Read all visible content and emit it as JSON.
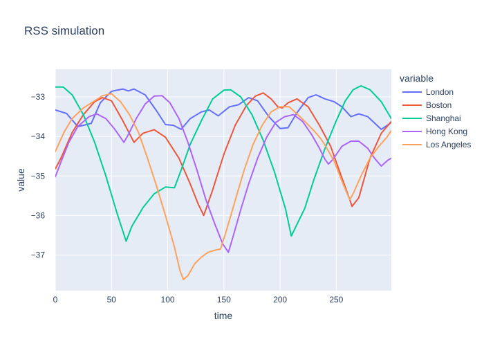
{
  "chart_data": {
    "type": "line",
    "title": "RSS simulation",
    "xlabel": "time",
    "ylabel": "value",
    "legend_title": "variable",
    "legend_position": "right",
    "grid": true,
    "xlim": [
      0,
      299
    ],
    "ylim": [
      -37.9,
      -32.3
    ],
    "x_ticks": [
      0,
      50,
      100,
      150,
      200,
      250
    ],
    "y_ticks": [
      -37,
      -36,
      -35,
      -34,
      -33
    ],
    "x_tick_labels": [
      "0",
      "50",
      "100",
      "150",
      "200",
      "250"
    ],
    "y_tick_labels": [
      "−37",
      "−36",
      "−35",
      "−34",
      "−33"
    ],
    "series": [
      {
        "name": "London",
        "color": "#636efa",
        "points": [
          [
            0,
            -33.33
          ],
          [
            10,
            -33.42
          ],
          [
            20,
            -33.75
          ],
          [
            25,
            -33.72
          ],
          [
            32,
            -33.67
          ],
          [
            40,
            -33.15
          ],
          [
            50,
            -32.86
          ],
          [
            60,
            -32.8
          ],
          [
            65,
            -32.85
          ],
          [
            70,
            -32.8
          ],
          [
            80,
            -32.95
          ],
          [
            90,
            -33.35
          ],
          [
            98,
            -33.7
          ],
          [
            105,
            -33.72
          ],
          [
            112,
            -33.82
          ],
          [
            120,
            -33.55
          ],
          [
            130,
            -33.38
          ],
          [
            137,
            -33.33
          ],
          [
            145,
            -33.48
          ],
          [
            155,
            -33.25
          ],
          [
            163,
            -33.2
          ],
          [
            172,
            -33.02
          ],
          [
            180,
            -33.1
          ],
          [
            190,
            -33.5
          ],
          [
            200,
            -33.8
          ],
          [
            207,
            -33.78
          ],
          [
            215,
            -33.4
          ],
          [
            225,
            -33.02
          ],
          [
            232,
            -32.95
          ],
          [
            240,
            -33.05
          ],
          [
            248,
            -33.12
          ],
          [
            255,
            -33.25
          ],
          [
            263,
            -33.5
          ],
          [
            270,
            -33.43
          ],
          [
            278,
            -33.5
          ],
          [
            290,
            -33.82
          ],
          [
            299,
            -33.65
          ]
        ]
      },
      {
        "name": "Boston",
        "color": "#ef553b",
        "points": [
          [
            0,
            -34.82
          ],
          [
            5,
            -34.55
          ],
          [
            15,
            -33.9
          ],
          [
            25,
            -33.45
          ],
          [
            35,
            -33.12
          ],
          [
            42,
            -33.02
          ],
          [
            50,
            -33.1
          ],
          [
            60,
            -33.6
          ],
          [
            70,
            -34.15
          ],
          [
            78,
            -33.92
          ],
          [
            88,
            -33.83
          ],
          [
            98,
            -34.02
          ],
          [
            110,
            -34.55
          ],
          [
            120,
            -35.2
          ],
          [
            127,
            -35.7
          ],
          [
            132,
            -36.0
          ],
          [
            140,
            -35.35
          ],
          [
            150,
            -34.45
          ],
          [
            160,
            -33.72
          ],
          [
            170,
            -33.22
          ],
          [
            178,
            -32.98
          ],
          [
            185,
            -32.9
          ],
          [
            192,
            -33.05
          ],
          [
            198,
            -33.25
          ],
          [
            202,
            -33.28
          ],
          [
            207,
            -33.15
          ],
          [
            215,
            -33.05
          ],
          [
            225,
            -33.25
          ],
          [
            235,
            -33.72
          ],
          [
            245,
            -34.25
          ],
          [
            255,
            -35.05
          ],
          [
            262,
            -35.6
          ],
          [
            264,
            -35.77
          ],
          [
            270,
            -35.55
          ],
          [
            280,
            -34.55
          ],
          [
            290,
            -33.92
          ],
          [
            299,
            -33.62
          ]
        ]
      },
      {
        "name": "Shanghai",
        "color": "#00cc96",
        "points": [
          [
            0,
            -32.75
          ],
          [
            7,
            -32.75
          ],
          [
            15,
            -32.95
          ],
          [
            25,
            -33.45
          ],
          [
            35,
            -34.15
          ],
          [
            45,
            -35.0
          ],
          [
            55,
            -35.95
          ],
          [
            63,
            -36.65
          ],
          [
            68,
            -36.28
          ],
          [
            78,
            -35.8
          ],
          [
            88,
            -35.45
          ],
          [
            98,
            -35.28
          ],
          [
            106,
            -35.3
          ],
          [
            112,
            -34.85
          ],
          [
            120,
            -34.2
          ],
          [
            130,
            -33.6
          ],
          [
            140,
            -33.05
          ],
          [
            150,
            -32.83
          ],
          [
            156,
            -32.82
          ],
          [
            165,
            -33.0
          ],
          [
            175,
            -33.45
          ],
          [
            185,
            -34.1
          ],
          [
            195,
            -34.9
          ],
          [
            205,
            -35.85
          ],
          [
            210,
            -36.52
          ],
          [
            218,
            -36.05
          ],
          [
            222,
            -35.82
          ],
          [
            230,
            -35.1
          ],
          [
            240,
            -34.3
          ],
          [
            250,
            -33.6
          ],
          [
            258,
            -33.1
          ],
          [
            265,
            -32.82
          ],
          [
            272,
            -32.72
          ],
          [
            280,
            -32.82
          ],
          [
            290,
            -33.12
          ],
          [
            299,
            -33.55
          ]
        ]
      },
      {
        "name": "Hong Kong",
        "color": "#ab63fa",
        "points": [
          [
            0,
            -35.02
          ],
          [
            5,
            -34.65
          ],
          [
            12,
            -34.15
          ],
          [
            20,
            -33.75
          ],
          [
            30,
            -33.5
          ],
          [
            37,
            -33.43
          ],
          [
            45,
            -33.55
          ],
          [
            53,
            -33.82
          ],
          [
            61,
            -34.15
          ],
          [
            65,
            -33.95
          ],
          [
            72,
            -33.55
          ],
          [
            80,
            -33.18
          ],
          [
            88,
            -32.98
          ],
          [
            95,
            -32.97
          ],
          [
            102,
            -33.15
          ],
          [
            110,
            -33.55
          ],
          [
            118,
            -34.15
          ],
          [
            126,
            -34.85
          ],
          [
            134,
            -35.6
          ],
          [
            142,
            -36.22
          ],
          [
            149,
            -36.72
          ],
          [
            154,
            -36.93
          ],
          [
            158,
            -36.55
          ],
          [
            165,
            -35.85
          ],
          [
            172,
            -35.2
          ],
          [
            180,
            -34.55
          ],
          [
            188,
            -34.02
          ],
          [
            196,
            -33.65
          ],
          [
            204,
            -33.5
          ],
          [
            212,
            -33.45
          ],
          [
            220,
            -33.62
          ],
          [
            228,
            -33.95
          ],
          [
            235,
            -34.3
          ],
          [
            240,
            -34.58
          ],
          [
            243,
            -34.7
          ],
          [
            247,
            -34.58
          ],
          [
            255,
            -34.25
          ],
          [
            263,
            -34.12
          ],
          [
            270,
            -34.12
          ],
          [
            278,
            -34.3
          ],
          [
            284,
            -34.55
          ],
          [
            290,
            -34.75
          ],
          [
            296,
            -34.6
          ],
          [
            299,
            -34.55
          ]
        ]
      },
      {
        "name": "Los Angeles",
        "color": "#ffa15a",
        "points": [
          [
            0,
            -34.38
          ],
          [
            8,
            -33.88
          ],
          [
            15,
            -33.55
          ],
          [
            25,
            -33.28
          ],
          [
            35,
            -33.1
          ],
          [
            42,
            -32.97
          ],
          [
            50,
            -32.92
          ],
          [
            58,
            -33.12
          ],
          [
            66,
            -33.45
          ],
          [
            74,
            -33.9
          ],
          [
            82,
            -34.55
          ],
          [
            90,
            -35.25
          ],
          [
            98,
            -36.0
          ],
          [
            106,
            -36.8
          ],
          [
            111,
            -37.4
          ],
          [
            114,
            -37.62
          ],
          [
            118,
            -37.52
          ],
          [
            124,
            -37.22
          ],
          [
            130,
            -37.05
          ],
          [
            136,
            -36.93
          ],
          [
            143,
            -36.87
          ],
          [
            147,
            -36.85
          ],
          [
            152,
            -36.4
          ],
          [
            160,
            -35.62
          ],
          [
            168,
            -34.85
          ],
          [
            176,
            -34.2
          ],
          [
            184,
            -33.72
          ],
          [
            192,
            -33.38
          ],
          [
            200,
            -33.25
          ],
          [
            208,
            -33.25
          ],
          [
            214,
            -33.4
          ],
          [
            222,
            -33.62
          ],
          [
            230,
            -33.85
          ],
          [
            236,
            -34.05
          ],
          [
            240,
            -34.22
          ],
          [
            248,
            -34.62
          ],
          [
            256,
            -35.2
          ],
          [
            262,
            -35.6
          ],
          [
            265,
            -35.45
          ],
          [
            272,
            -35.0
          ],
          [
            280,
            -34.55
          ],
          [
            288,
            -34.25
          ],
          [
            295,
            -34.02
          ],
          [
            299,
            -33.85
          ]
        ]
      }
    ]
  }
}
